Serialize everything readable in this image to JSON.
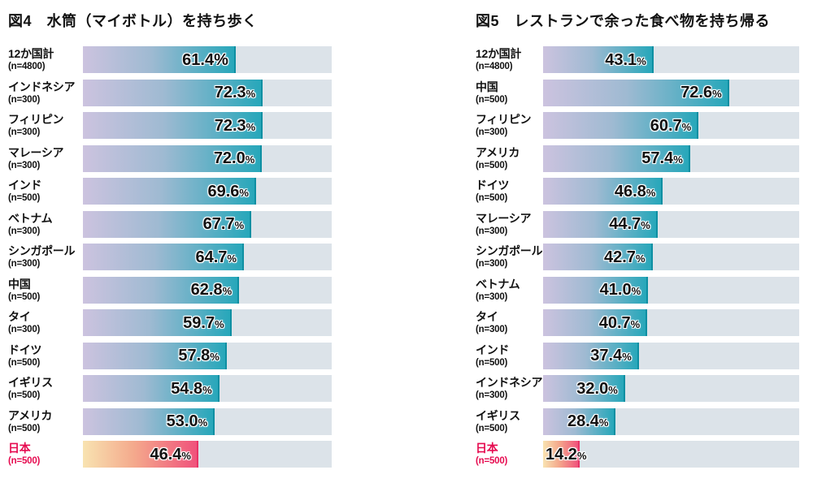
{
  "colors": {
    "track": "#dce3e9",
    "bar_gradient_start": "#ccc3df",
    "bar_gradient_mid": "#9fbad2",
    "bar_gradient_end": "#27a7ba",
    "bar_edge": "#0e8fa2",
    "highlight_gradient_start": "#f8e3b1",
    "highlight_gradient_mid": "#f4a98c",
    "highlight_gradient_end": "#f0527b",
    "highlight_edge": "#e83366",
    "highlight_text": "#e60a4f",
    "text": "#111111"
  },
  "chart_data": [
    {
      "type": "bar",
      "orientation": "horizontal",
      "title": "図4　水筒（マイボトル）を持ち歩く",
      "unit": "%",
      "xlim": [
        0,
        100
      ],
      "grid": false,
      "legend": false,
      "categories": [
        "12か国計",
        "インドネシア",
        "フィリピン",
        "マレーシア",
        "インド",
        "ベトナム",
        "シンガポール",
        "中国",
        "タイ",
        "ドイツ",
        "イギリス",
        "アメリカ",
        "日本"
      ],
      "sample_labels": [
        "(n=4800)",
        "(n=300)",
        "(n=300)",
        "(n=300)",
        "(n=500)",
        "(n=300)",
        "(n=300)",
        "(n=500)",
        "(n=300)",
        "(n=500)",
        "(n=500)",
        "(n=500)",
        "(n=500)"
      ],
      "values": [
        61.4,
        72.3,
        72.3,
        72.0,
        69.6,
        67.7,
        64.7,
        62.8,
        59.7,
        57.8,
        54.8,
        53.0,
        46.4
      ],
      "highlight_index": 12,
      "large_percent_indices": [
        0
      ]
    },
    {
      "type": "bar",
      "orientation": "horizontal",
      "title": "図5　レストランで余った食べ物を持ち帰る",
      "unit": "%",
      "xlim": [
        0,
        100
      ],
      "grid": false,
      "legend": false,
      "categories": [
        "12か国計",
        "中国",
        "フィリピン",
        "アメリカ",
        "ドイツ",
        "マレーシア",
        "シンガポール",
        "ベトナム",
        "タイ",
        "インド",
        "インドネシア",
        "イギリス",
        "日本"
      ],
      "sample_labels": [
        "(n=4800)",
        "(n=500)",
        "(n=300)",
        "(n=500)",
        "(n=500)",
        "(n=300)",
        "(n=300)",
        "(n=300)",
        "(n=300)",
        "(n=500)",
        "(n=300)",
        "(n=500)",
        "(n=500)"
      ],
      "values": [
        43.1,
        72.6,
        60.7,
        57.4,
        46.8,
        44.7,
        42.7,
        41.0,
        40.7,
        37.4,
        32.0,
        28.4,
        14.2
      ],
      "highlight_index": 12,
      "large_percent_indices": []
    }
  ]
}
